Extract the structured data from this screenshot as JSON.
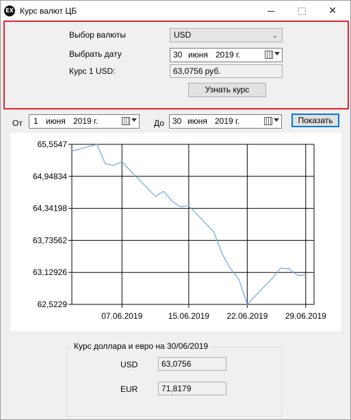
{
  "window": {
    "title": "Курс валют ЦБ",
    "icon_text": "EX",
    "icon": "app-ex-icon",
    "close_glyph": "✕"
  },
  "query": {
    "currency_label": "Выбор валюты",
    "currency_value": "USD",
    "date_label": "Выбрать дату",
    "date": {
      "day": "30",
      "month": "июня",
      "year": "2019 г."
    },
    "rate_label": "Курс 1 USD:",
    "rate_value": "63,0756 руб.",
    "submit_label": "Узнать курс"
  },
  "range": {
    "from_label": "От",
    "from": {
      "day": "1",
      "month": "июня",
      "year": "2019 г."
    },
    "to_label": "До",
    "to": {
      "day": "30",
      "month": "июня",
      "year": "2019 г."
    },
    "show_label": "Показать"
  },
  "chart_data": {
    "type": "line",
    "title": "",
    "xlabel": "",
    "ylabel": "",
    "grid": true,
    "legend": "none",
    "series_color": "#6aa6e6",
    "yticks": [
      "65,5547",
      "64,94834",
      "64,34198",
      "63,73562",
      "63,12926",
      "62,5229"
    ],
    "ytick_values": [
      65.5547,
      64.94834,
      64.34198,
      63.73562,
      63.12926,
      62.5229
    ],
    "ylim": [
      62.5229,
      65.5547
    ],
    "xtick_labels": [
      "07.06.2019",
      "15.06.2019",
      "22.06.2019",
      "29.06.2019"
    ],
    "xtick_days": [
      7,
      15,
      22,
      29
    ],
    "xlim": [
      1,
      30
    ],
    "x": [
      1,
      4,
      5,
      6,
      7,
      8,
      11,
      12,
      13,
      14,
      15,
      18,
      19,
      20,
      21,
      22,
      25,
      26,
      27,
      28,
      29
    ],
    "values": [
      65.4266,
      65.5547,
      65.1877,
      65.1548,
      65.2284,
      65.0539,
      64.5699,
      64.6644,
      64.4759,
      64.3739,
      64.3909,
      63.8945,
      63.4798,
      63.1963,
      62.9985,
      62.5229,
      63.0203,
      63.2092,
      63.1964,
      63.0756,
      63.0756
    ]
  },
  "summary": {
    "title": "Курс доллара и евро на 30/06/2019",
    "usd_label": "USD",
    "usd_value": "63,0756",
    "eur_label": "EUR",
    "eur_value": "71,8179"
  }
}
